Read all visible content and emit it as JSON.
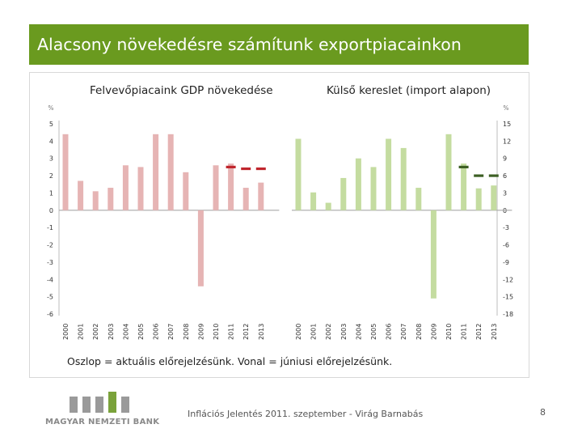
{
  "slide": {
    "title": "Alacsony növekedésre számítunk exportpiacainkon",
    "footer_text": "Inflációs Jelentés 2011. szeptember - Virág Barnabás",
    "page_number": "8",
    "logo_text": "MAGYAR NEMZETI BANK"
  },
  "chart_data": [
    {
      "type": "bar",
      "title": "Felvevőpiacaink GDP növekedése",
      "ylabel": "%",
      "ylim": [
        -6,
        5
      ],
      "yticks": [
        5,
        4,
        3,
        2,
        1,
        0,
        -1,
        -2,
        -3,
        -4,
        -5,
        -6
      ],
      "categories": [
        "2000",
        "2001",
        "2002",
        "2003",
        "2004",
        "2005",
        "2006",
        "2007",
        "2008",
        "2009",
        "2010",
        "2011",
        "2012",
        "2013"
      ],
      "series": [
        {
          "kind": "bar",
          "color": "#e6b4b4",
          "values": [
            4.4,
            1.7,
            1.1,
            1.3,
            2.6,
            2.5,
            4.4,
            4.4,
            2.2,
            -4.4,
            2.6,
            2.7,
            1.3,
            1.6
          ]
        },
        {
          "kind": "line-marker",
          "color": "#c0262d",
          "values": [
            null,
            null,
            null,
            null,
            null,
            null,
            null,
            null,
            null,
            null,
            null,
            2.5,
            2.4,
            2.4
          ]
        }
      ],
      "note": "Oszlop = aktuális előrejelzésünk. Vonal = júniusi előrejelzésünk."
    },
    {
      "type": "bar",
      "title": "Külső kereslet  (import alapon)",
      "ylabel": "%",
      "ylim": [
        -18,
        15
      ],
      "yticks": [
        15,
        12,
        9,
        6,
        3,
        0,
        -3,
        -6,
        -9,
        -12,
        -15,
        -18
      ],
      "categories": [
        "2000",
        "2001",
        "2002",
        "2003",
        "2004",
        "2005",
        "2006",
        "2007",
        "2008",
        "2009",
        "2010",
        "2011",
        "2012",
        "2013"
      ],
      "series": [
        {
          "kind": "bar",
          "color": "#c4dca0",
          "values": [
            12.4,
            3.1,
            1.3,
            5.6,
            9.0,
            7.5,
            12.4,
            10.8,
            3.9,
            -15.3,
            13.2,
            8.1,
            3.8,
            4.3
          ]
        },
        {
          "kind": "line-marker",
          "color": "#3d6024",
          "values": [
            null,
            null,
            null,
            null,
            null,
            null,
            null,
            null,
            null,
            null,
            null,
            7.5,
            6.0,
            6.0
          ]
        }
      ]
    }
  ],
  "colors": {
    "title_bar": "#6a9a1f",
    "logo_bar": "#9a9a9a",
    "logo_accent": "#7aa23a"
  }
}
